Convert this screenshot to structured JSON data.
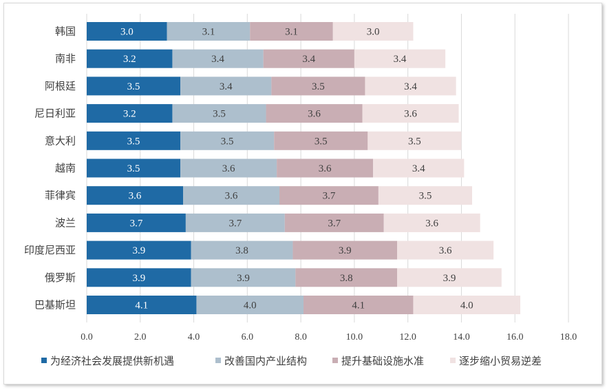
{
  "chart_data": {
    "type": "bar",
    "orientation": "horizontal",
    "stacked": true,
    "categories": [
      "韩国",
      "南非",
      "阿根廷",
      "尼日利亚",
      "意大利",
      "越南",
      "菲律宾",
      "波兰",
      "印度尼西亚",
      "俄罗斯",
      "巴基斯坦"
    ],
    "series": [
      {
        "name": "为经济社会发展提供新机遇",
        "color": "#1f6aa5",
        "label_color": "#ffffff",
        "values": [
          3.0,
          3.2,
          3.5,
          3.2,
          3.5,
          3.5,
          3.6,
          3.7,
          3.9,
          3.9,
          4.1
        ]
      },
      {
        "name": "改善国内产业结构",
        "color": "#adbfcd",
        "label_color": "#404040",
        "values": [
          3.1,
          3.4,
          3.4,
          3.5,
          3.5,
          3.6,
          3.6,
          3.7,
          3.8,
          3.9,
          4.0
        ]
      },
      {
        "name": "提升基础设施水准",
        "color": "#c9aeb4",
        "label_color": "#404040",
        "values": [
          3.1,
          3.4,
          3.5,
          3.6,
          3.5,
          3.6,
          3.7,
          3.7,
          3.9,
          3.8,
          4.1
        ]
      },
      {
        "name": "逐步缩小贸易逆差",
        "color": "#f0e2e2",
        "label_color": "#404040",
        "values": [
          3.0,
          3.4,
          3.4,
          3.6,
          3.5,
          3.4,
          3.5,
          3.6,
          3.6,
          3.9,
          4.0
        ]
      }
    ],
    "xlim": [
      0,
      18
    ],
    "xticks": [
      "0.0",
      "2.0",
      "4.0",
      "6.0",
      "8.0",
      "10.0",
      "12.0",
      "14.0",
      "16.0",
      "18.0"
    ],
    "grid": true,
    "legend": "bottom",
    "title": "",
    "xlabel": "",
    "ylabel": ""
  }
}
